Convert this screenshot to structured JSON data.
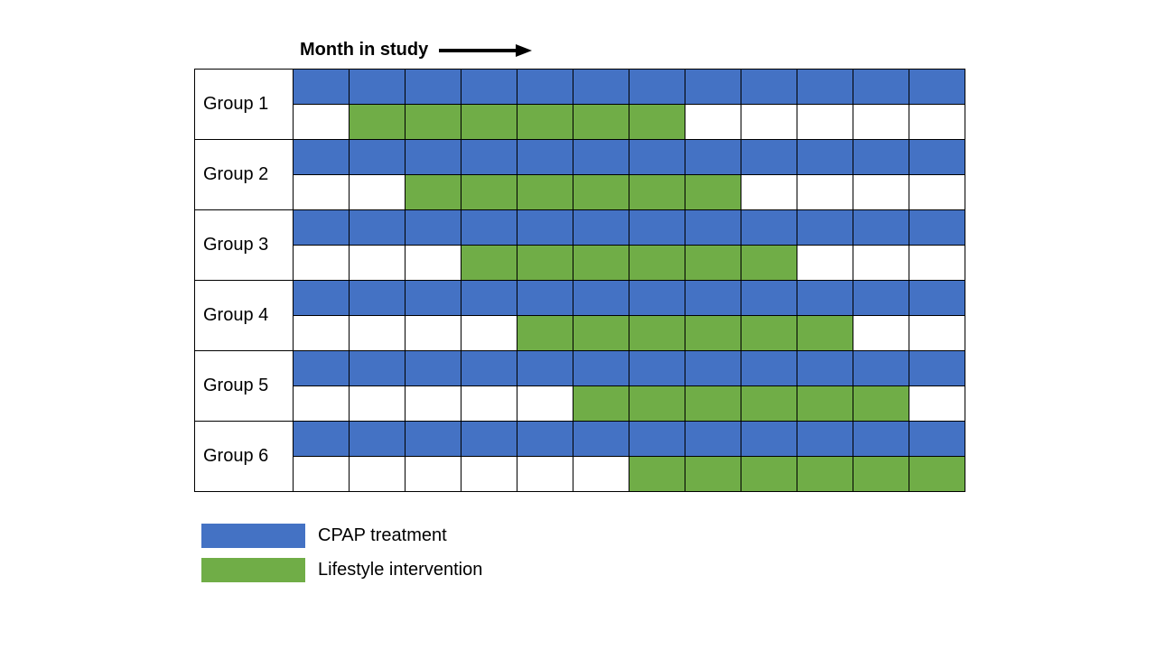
{
  "chart_data": {
    "type": "gantt",
    "title": "Month in study",
    "x_axis": {
      "label": "Month in study",
      "months": 12
    },
    "colors": {
      "cpap": "#4472C4",
      "lifestyle": "#70AD47",
      "grid_line": "#000000",
      "background": "#FFFFFF"
    },
    "groups": [
      {
        "name": "Group 1",
        "cpap_start": 1,
        "cpap_end": 12,
        "lifestyle_start": 2,
        "lifestyle_end": 7
      },
      {
        "name": "Group 2",
        "cpap_start": 1,
        "cpap_end": 12,
        "lifestyle_start": 3,
        "lifestyle_end": 8
      },
      {
        "name": "Group 3",
        "cpap_start": 1,
        "cpap_end": 12,
        "lifestyle_start": 4,
        "lifestyle_end": 9
      },
      {
        "name": "Group 4",
        "cpap_start": 1,
        "cpap_end": 12,
        "lifestyle_start": 5,
        "lifestyle_end": 10
      },
      {
        "name": "Group 5",
        "cpap_start": 1,
        "cpap_end": 12,
        "lifestyle_start": 6,
        "lifestyle_end": 11
      },
      {
        "name": "Group 6",
        "cpap_start": 1,
        "cpap_end": 12,
        "lifestyle_start": 7,
        "lifestyle_end": 12
      }
    ],
    "legend": [
      {
        "label": "CPAP treatment",
        "color": "#4472C4"
      },
      {
        "label": "Lifestyle intervention",
        "color": "#70AD47"
      }
    ],
    "layout": {
      "grid_on": true,
      "legend_position": "bottom-left",
      "row_per_group": 2
    }
  }
}
